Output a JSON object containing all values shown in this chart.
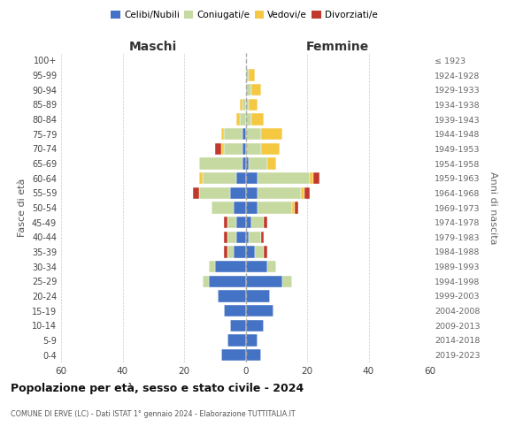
{
  "age_groups": [
    "0-4",
    "5-9",
    "10-14",
    "15-19",
    "20-24",
    "25-29",
    "30-34",
    "35-39",
    "40-44",
    "45-49",
    "50-54",
    "55-59",
    "60-64",
    "65-69",
    "70-74",
    "75-79",
    "80-84",
    "85-89",
    "90-94",
    "95-99",
    "100+"
  ],
  "birth_years": [
    "2019-2023",
    "2014-2018",
    "2009-2013",
    "2004-2008",
    "1999-2003",
    "1994-1998",
    "1989-1993",
    "1984-1988",
    "1979-1983",
    "1974-1978",
    "1969-1973",
    "1964-1968",
    "1959-1963",
    "1954-1958",
    "1949-1953",
    "1944-1948",
    "1939-1943",
    "1934-1938",
    "1929-1933",
    "1924-1928",
    "≤ 1923"
  ],
  "males": {
    "celibi": [
      8,
      6,
      5,
      7,
      9,
      12,
      10,
      4,
      3,
      3,
      4,
      5,
      3,
      1,
      1,
      1,
      0,
      0,
      0,
      0,
      0
    ],
    "coniugati": [
      0,
      0,
      0,
      0,
      0,
      2,
      2,
      2,
      3,
      3,
      7,
      10,
      11,
      14,
      6,
      6,
      2,
      1,
      0,
      0,
      0
    ],
    "vedovi": [
      0,
      0,
      0,
      0,
      0,
      0,
      0,
      0,
      0,
      0,
      0,
      0,
      1,
      0,
      1,
      1,
      1,
      1,
      0,
      0,
      0
    ],
    "divorziati": [
      0,
      0,
      0,
      0,
      0,
      0,
      0,
      1,
      1,
      1,
      0,
      2,
      0,
      0,
      2,
      0,
      0,
      0,
      0,
      0,
      0
    ]
  },
  "females": {
    "nubili": [
      5,
      4,
      6,
      9,
      8,
      12,
      7,
      3,
      1,
      2,
      4,
      4,
      4,
      1,
      0,
      0,
      0,
      0,
      0,
      0,
      0
    ],
    "coniugate": [
      0,
      0,
      0,
      0,
      0,
      3,
      3,
      3,
      4,
      4,
      11,
      14,
      17,
      6,
      5,
      5,
      2,
      1,
      2,
      1,
      0
    ],
    "vedove": [
      0,
      0,
      0,
      0,
      0,
      0,
      0,
      0,
      0,
      0,
      1,
      1,
      1,
      3,
      6,
      7,
      4,
      3,
      3,
      2,
      0
    ],
    "divorziate": [
      0,
      0,
      0,
      0,
      0,
      0,
      0,
      1,
      1,
      1,
      1,
      2,
      2,
      0,
      0,
      0,
      0,
      0,
      0,
      0,
      0
    ]
  },
  "colors": {
    "celibi": "#4472c4",
    "coniugati": "#c5d9a0",
    "vedovi": "#f5c842",
    "divorziati": "#c0392b"
  },
  "title": "Popolazione per età, sesso e stato civile - 2024",
  "subtitle": "COMUNE DI ERVE (LC) - Dati ISTAT 1° gennaio 2024 - Elaborazione TUTTITALIA.IT",
  "label_maschi": "Maschi",
  "label_femmine": "Femmine",
  "ylabel_left": "Fasce di età",
  "ylabel_right": "Anni di nascita",
  "legend_labels": [
    "Celibi/Nubili",
    "Coniugati/e",
    "Vedovi/e",
    "Divorziati/e"
  ],
  "xlim": 60,
  "background_color": "#ffffff",
  "grid_color": "#cccccc"
}
